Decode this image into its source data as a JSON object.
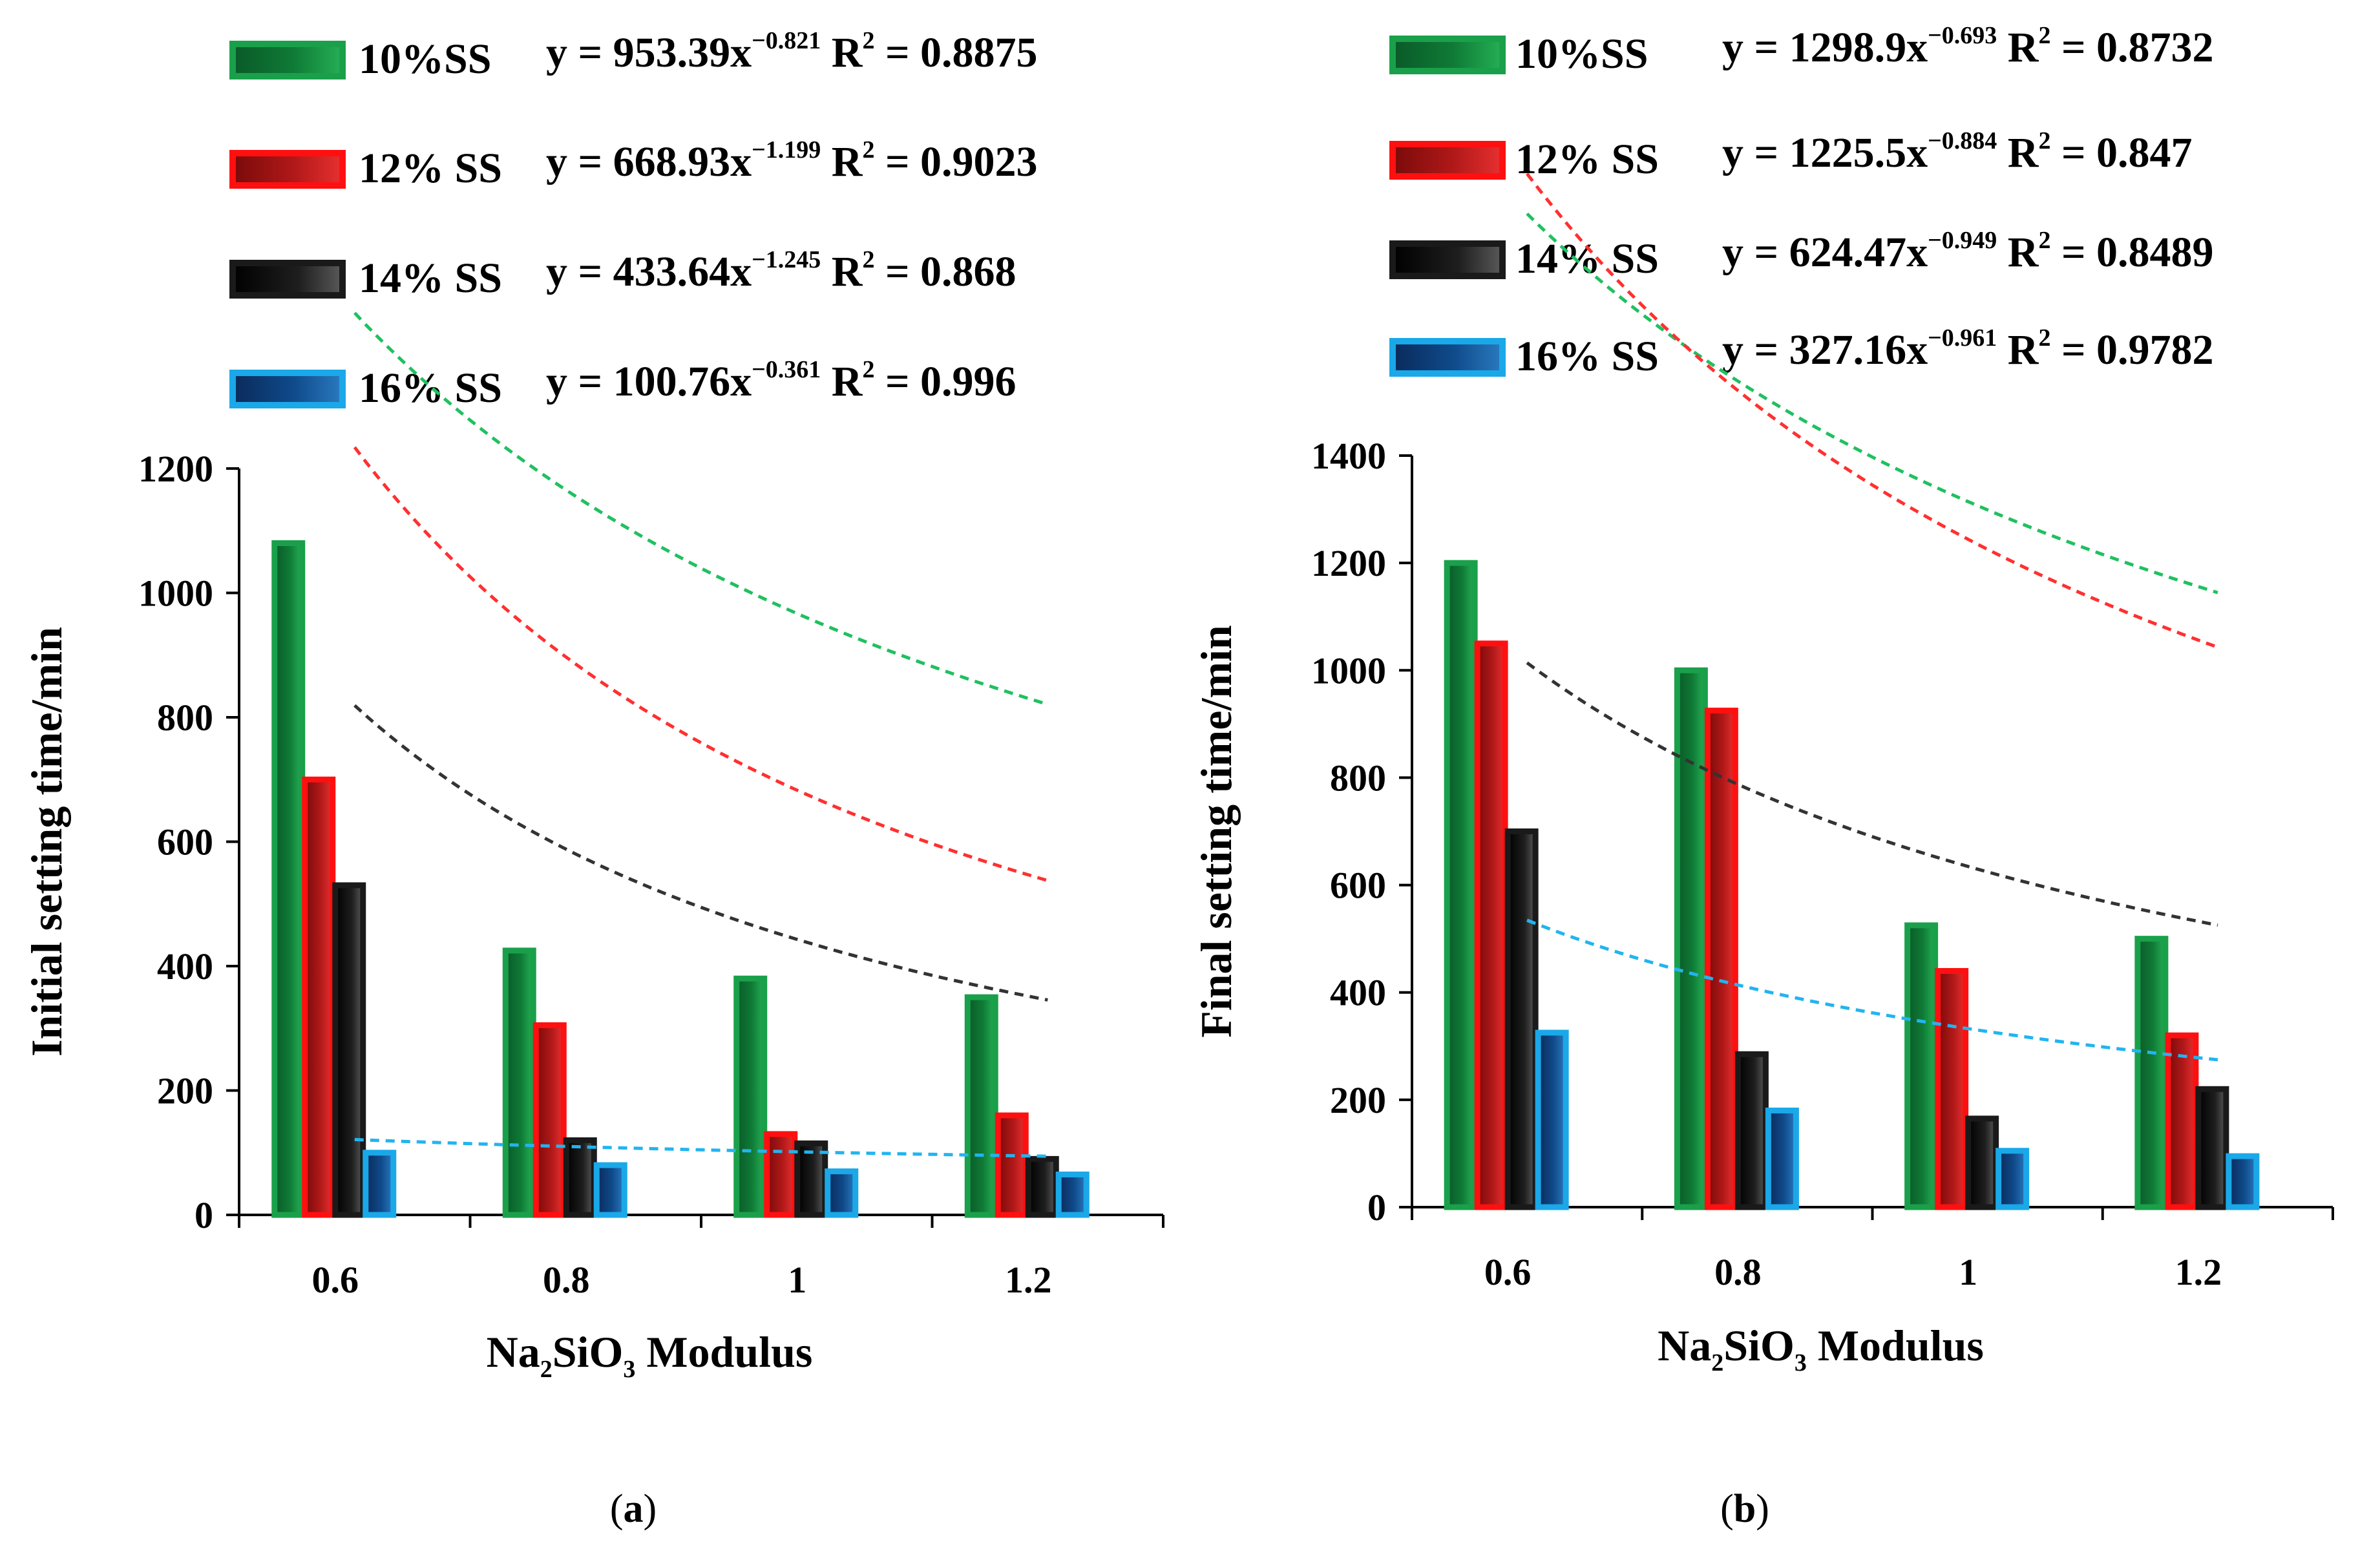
{
  "chart_data": [
    {
      "type": "bar",
      "panel_label": "a",
      "categories": [
        "0.6",
        "0.8",
        "1",
        "1.2"
      ],
      "x": [
        0.6,
        0.8,
        1.0,
        1.2
      ],
      "ylabel": "Initial setting time/min",
      "xlabel_parts": [
        "Na",
        "2",
        "SiO",
        "3",
        "  Modulus"
      ],
      "ylim": [
        0,
        1200
      ],
      "yticks": [
        "0",
        "200",
        "400",
        "600",
        "800",
        "1000",
        "1200"
      ],
      "legend_position": "top",
      "series": [
        {
          "name": "10%SS",
          "color": "#1aa04a",
          "trend_color": "#20c060",
          "values": [
            1080,
            425,
            380,
            350
          ],
          "eq": {
            "a": 953.39,
            "b": -0.821,
            "r2": "0.8875",
            "prefix": "y = 953.39x",
            "exp": "−0.821",
            "r2_label": "R",
            "r2_sup": "2",
            "r2_value": " = 0.8875"
          }
        },
        {
          "name": "12% SS",
          "color": "#ff1010",
          "trend_color": "#ff3030",
          "values": [
            700,
            305,
            130,
            160
          ],
          "eq": {
            "a": 668.93,
            "b": -1.199,
            "r2": "0.9023",
            "prefix": "y = 668.93x",
            "exp": "−1.199",
            "r2_label": "R",
            "r2_sup": "2",
            "r2_value": " = 0.9023"
          }
        },
        {
          "name": "14% SS",
          "color": "#1a1a1a",
          "trend_color": "#333333",
          "values": [
            530,
            120,
            115,
            90
          ],
          "eq": {
            "a": 433.64,
            "b": -1.245,
            "r2": "0.868",
            "prefix": "y = 433.64x",
            "exp": "−1.245",
            "r2_label": "R",
            "r2_sup": "2",
            "r2_value": " = 0.868"
          }
        },
        {
          "name": "16% SS",
          "color": "#1aa8e8",
          "trend_color": "#22b4f0",
          "values": [
            100,
            80,
            70,
            65
          ],
          "eq": {
            "a": 100.76,
            "b": -0.361,
            "r2": "0.996",
            "prefix": "y = 100.76x",
            "exp": "−0.361",
            "r2_label": "R",
            "r2_sup": "2",
            "r2_value": " = 0.996"
          }
        }
      ]
    },
    {
      "type": "bar",
      "panel_label": "b",
      "categories": [
        "0.6",
        "0.8",
        "1",
        "1.2"
      ],
      "x": [
        0.6,
        0.8,
        1.0,
        1.2
      ],
      "ylabel": "Final setting time/min",
      "xlabel_parts": [
        "Na",
        "2",
        "SiO",
        "3",
        "  Modulus"
      ],
      "ylim": [
        0,
        1400
      ],
      "yticks": [
        "0",
        "200",
        "400",
        "600",
        "800",
        "1000",
        "1200",
        "1400"
      ],
      "legend_position": "top",
      "series": [
        {
          "name": "10%SS",
          "color": "#1aa04a",
          "trend_color": "#20c060",
          "values": [
            1200,
            1000,
            525,
            500
          ],
          "eq": {
            "a": 1298.9,
            "b": -0.693,
            "r2": "0.8732",
            "prefix": "y = 1298.9x",
            "exp": "−0.693",
            "r2_label": "R",
            "r2_sup": "2",
            "r2_value": " = 0.8732"
          }
        },
        {
          "name": "12% SS",
          "color": "#ff1010",
          "trend_color": "#ff3030",
          "values": [
            1050,
            925,
            440,
            320
          ],
          "eq": {
            "a": 1225.5,
            "b": -0.884,
            "r2": "0.847",
            "prefix": "y = 1225.5x",
            "exp": "−0.884",
            "r2_label": "R",
            "r2_sup": "2",
            "r2_value": " = 0.847"
          }
        },
        {
          "name": "14% SS",
          "color": "#1a1a1a",
          "trend_color": "#333333",
          "values": [
            700,
            285,
            165,
            220
          ],
          "eq": {
            "a": 624.47,
            "b": -0.949,
            "r2": "0.8489",
            "prefix": "y = 624.47x",
            "exp": "−0.949",
            "r2_label": "R",
            "r2_sup": "2",
            "r2_value": " = 0.8489"
          }
        },
        {
          "name": "16% SS",
          "color": "#1aa8e8",
          "trend_color": "#22b4f0",
          "values": [
            325,
            180,
            105,
            95
          ],
          "eq": {
            "a": 327.16,
            "b": -0.961,
            "r2": "0.9782",
            "prefix": "y = 327.16x",
            "exp": "−0.961",
            "r2_label": "R",
            "r2_sup": "2",
            "r2_value": " = 0.9782"
          }
        }
      ]
    }
  ]
}
